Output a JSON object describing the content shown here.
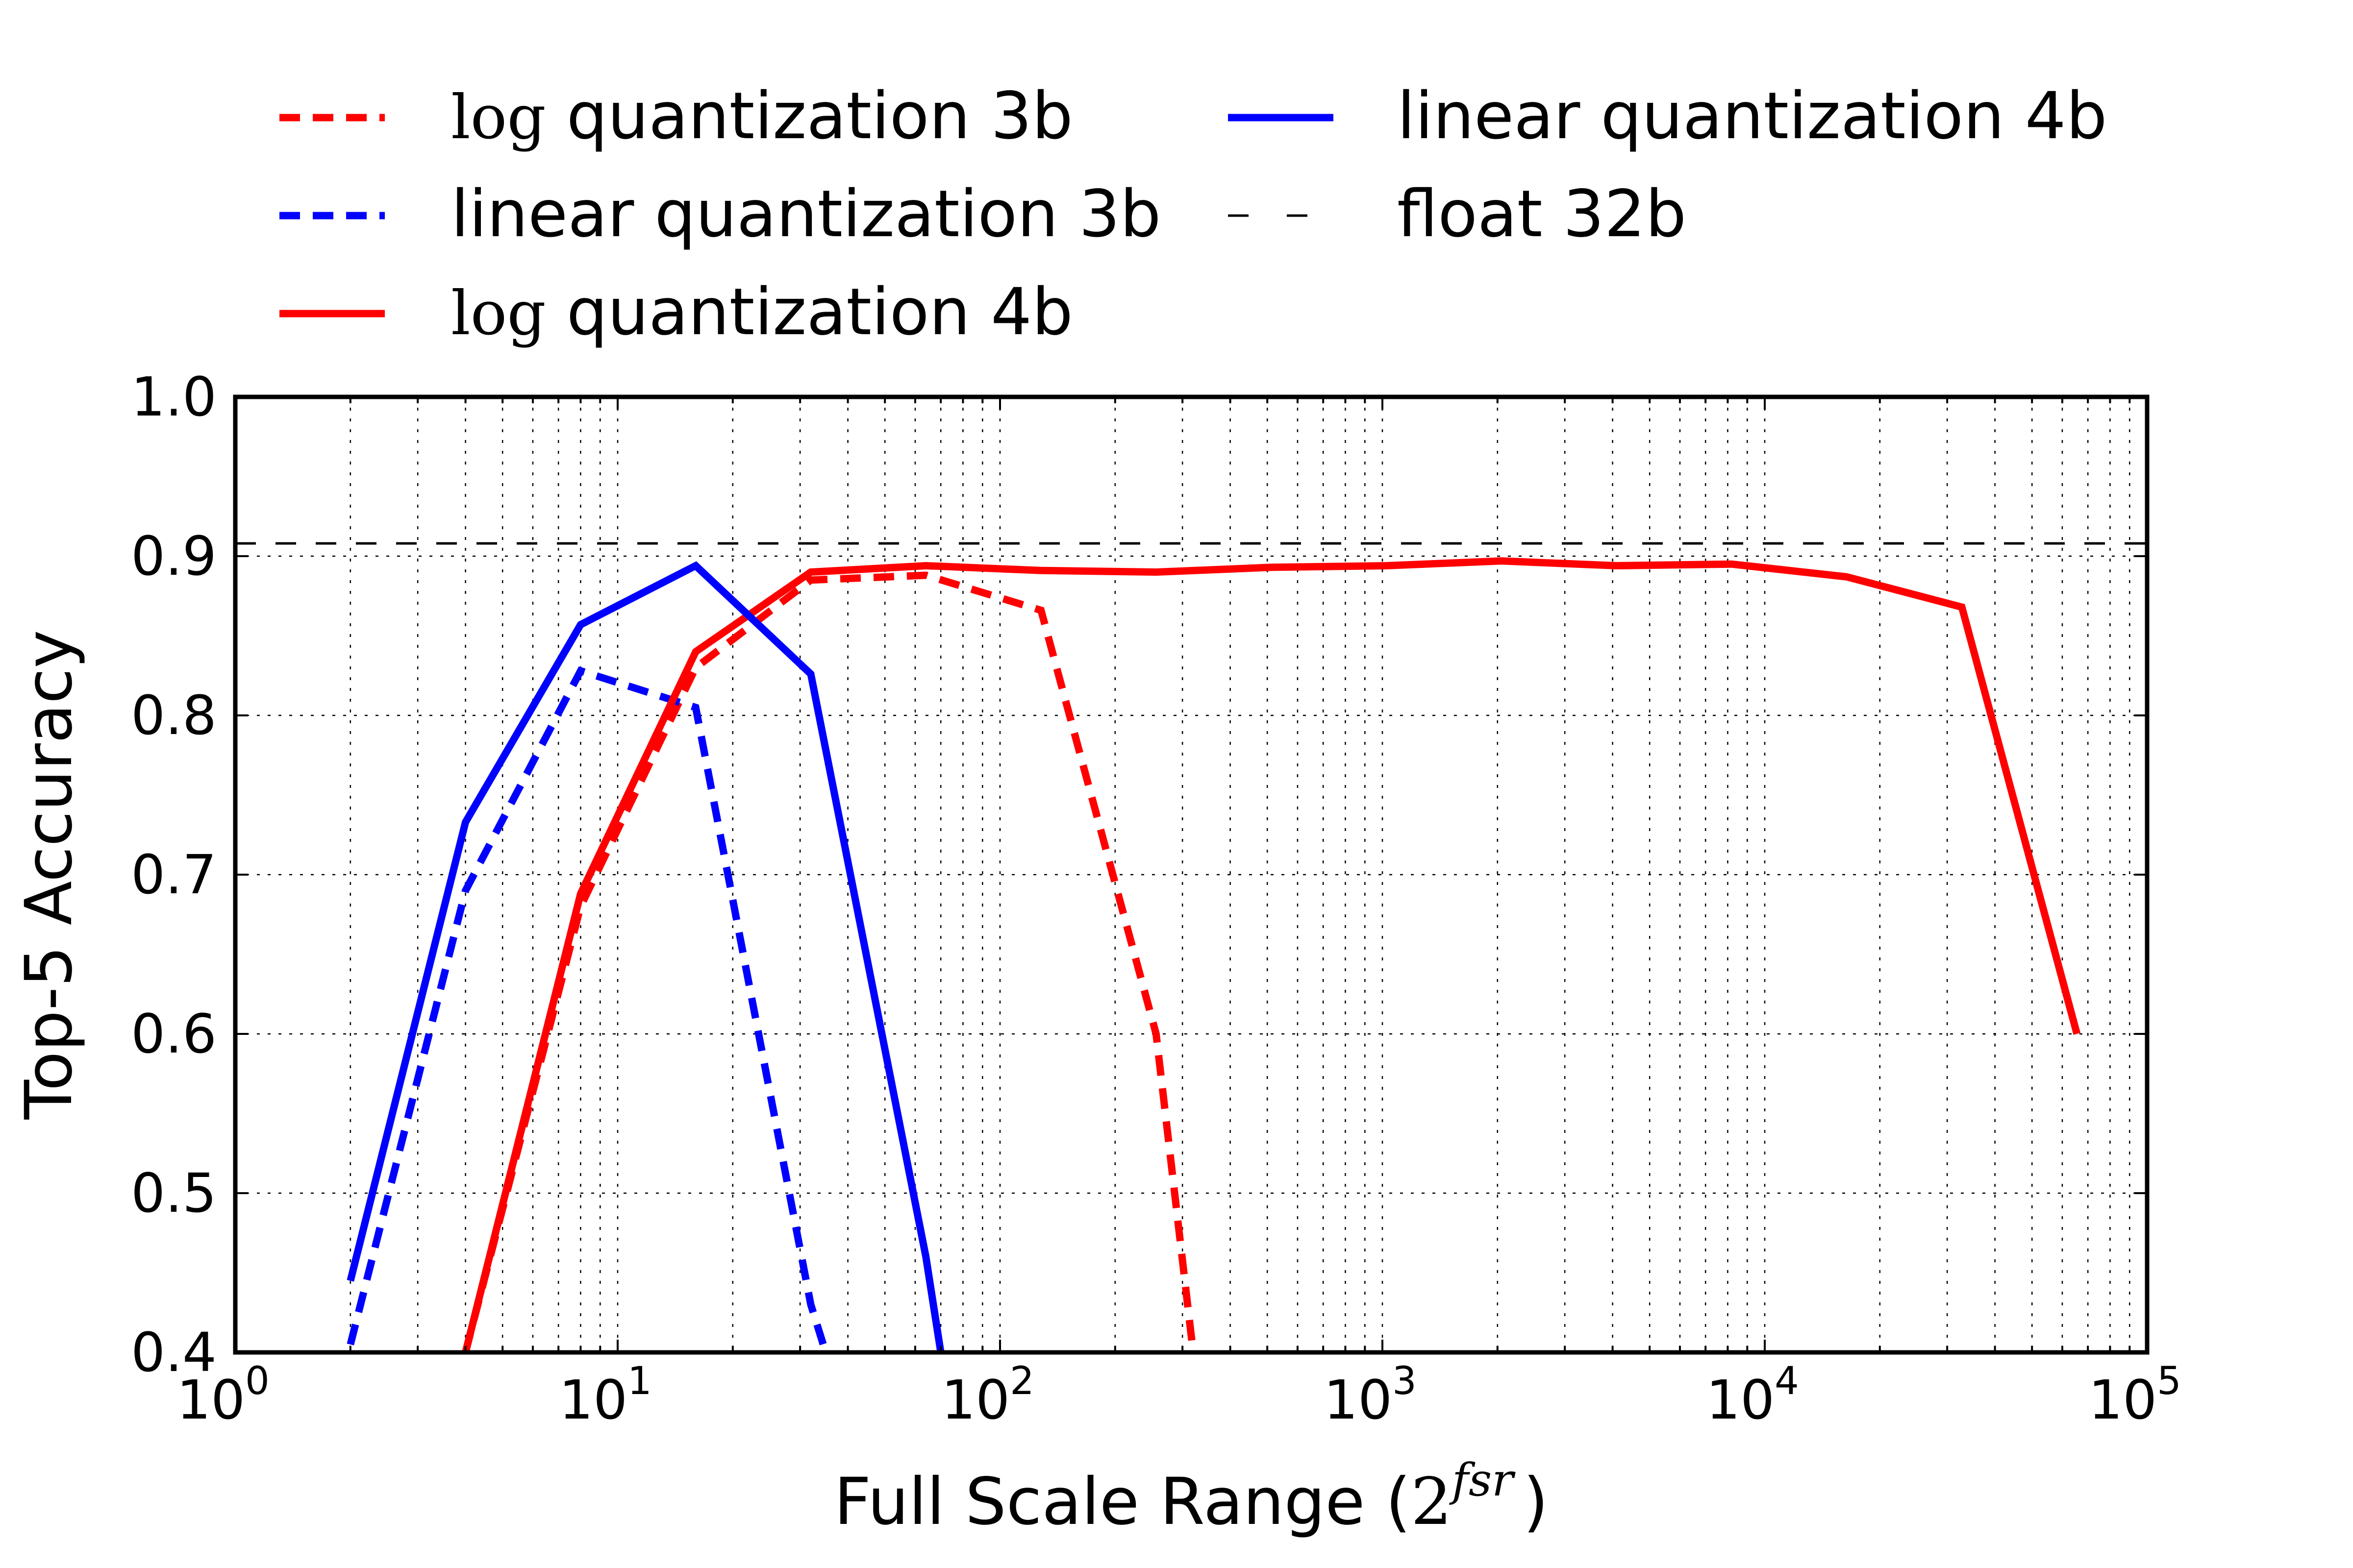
{
  "chart_data": {
    "type": "line",
    "xscale": "log",
    "title": "",
    "xlabel": "Full Scale Range (",
    "xlabel_base": "2",
    "xlabel_exp": "fsr",
    "xlabel_close": ")",
    "ylabel": "Top-5 Accuracy",
    "xlim": [
      1,
      100000
    ],
    "ylim": [
      0.4,
      1.0
    ],
    "grid": true,
    "x_ticks": [
      {
        "value": 1,
        "base": "10",
        "exp": "0"
      },
      {
        "value": 10,
        "base": "10",
        "exp": "1"
      },
      {
        "value": 100,
        "base": "10",
        "exp": "2"
      },
      {
        "value": 1000,
        "base": "10",
        "exp": "3"
      },
      {
        "value": 10000,
        "base": "10",
        "exp": "4"
      },
      {
        "value": 100000,
        "base": "10",
        "exp": "5"
      }
    ],
    "y_ticks": [
      {
        "value": 0.4,
        "label": "0.4"
      },
      {
        "value": 0.5,
        "label": "0.5"
      },
      {
        "value": 0.6,
        "label": "0.6"
      },
      {
        "value": 0.7,
        "label": "0.7"
      },
      {
        "value": 0.8,
        "label": "0.8"
      },
      {
        "value": 0.9,
        "label": "0.9"
      },
      {
        "value": 1.0,
        "label": "1.0"
      }
    ],
    "legend_position": "top, outside plot, two columns",
    "series": [
      {
        "id": "log-3b",
        "prefix": "log",
        "name": " quantization 3b",
        "color": "#ff0000",
        "dash": "dashed",
        "x": [
          4,
          8,
          16,
          32,
          64,
          128,
          256,
          320
        ],
        "y": [
          0.4,
          0.68,
          0.83,
          0.885,
          0.888,
          0.866,
          0.6,
          0.4
        ]
      },
      {
        "id": "linear-3b",
        "prefix": "",
        "name": "linear quantization 3b",
        "color": "#0000ff",
        "dash": "dashed",
        "x": [
          2,
          4,
          8,
          16,
          32,
          35
        ],
        "y": [
          0.405,
          0.69,
          0.828,
          0.805,
          0.43,
          0.4
        ]
      },
      {
        "id": "log-4b",
        "prefix": "log",
        "name": " quantization 4b",
        "color": "#ff0000",
        "dash": "solid",
        "x": [
          4,
          8,
          16,
          32,
          64,
          128,
          256,
          512,
          1024,
          2048,
          4096,
          8192,
          16384,
          32768,
          65536
        ],
        "y": [
          0.4,
          0.688,
          0.84,
          0.89,
          0.894,
          0.891,
          0.89,
          0.893,
          0.894,
          0.897,
          0.894,
          0.895,
          0.887,
          0.868,
          0.6
        ]
      },
      {
        "id": "linear-4b",
        "prefix": "",
        "name": "linear quantization 4b",
        "color": "#0000ff",
        "dash": "solid",
        "x": [
          2,
          4,
          8,
          16,
          32,
          64,
          70
        ],
        "y": [
          0.445,
          0.733,
          0.857,
          0.894,
          0.826,
          0.46,
          0.4
        ]
      },
      {
        "id": "float-32b",
        "prefix": "",
        "name": "float 32b",
        "color": "#000000",
        "dash": "thin-dashed",
        "x": [
          1,
          100000
        ],
        "y": [
          0.908,
          0.908
        ]
      }
    ],
    "legend_order": [
      "log-3b",
      "linear-3b",
      "log-4b",
      "linear-4b",
      "float-32b"
    ]
  }
}
